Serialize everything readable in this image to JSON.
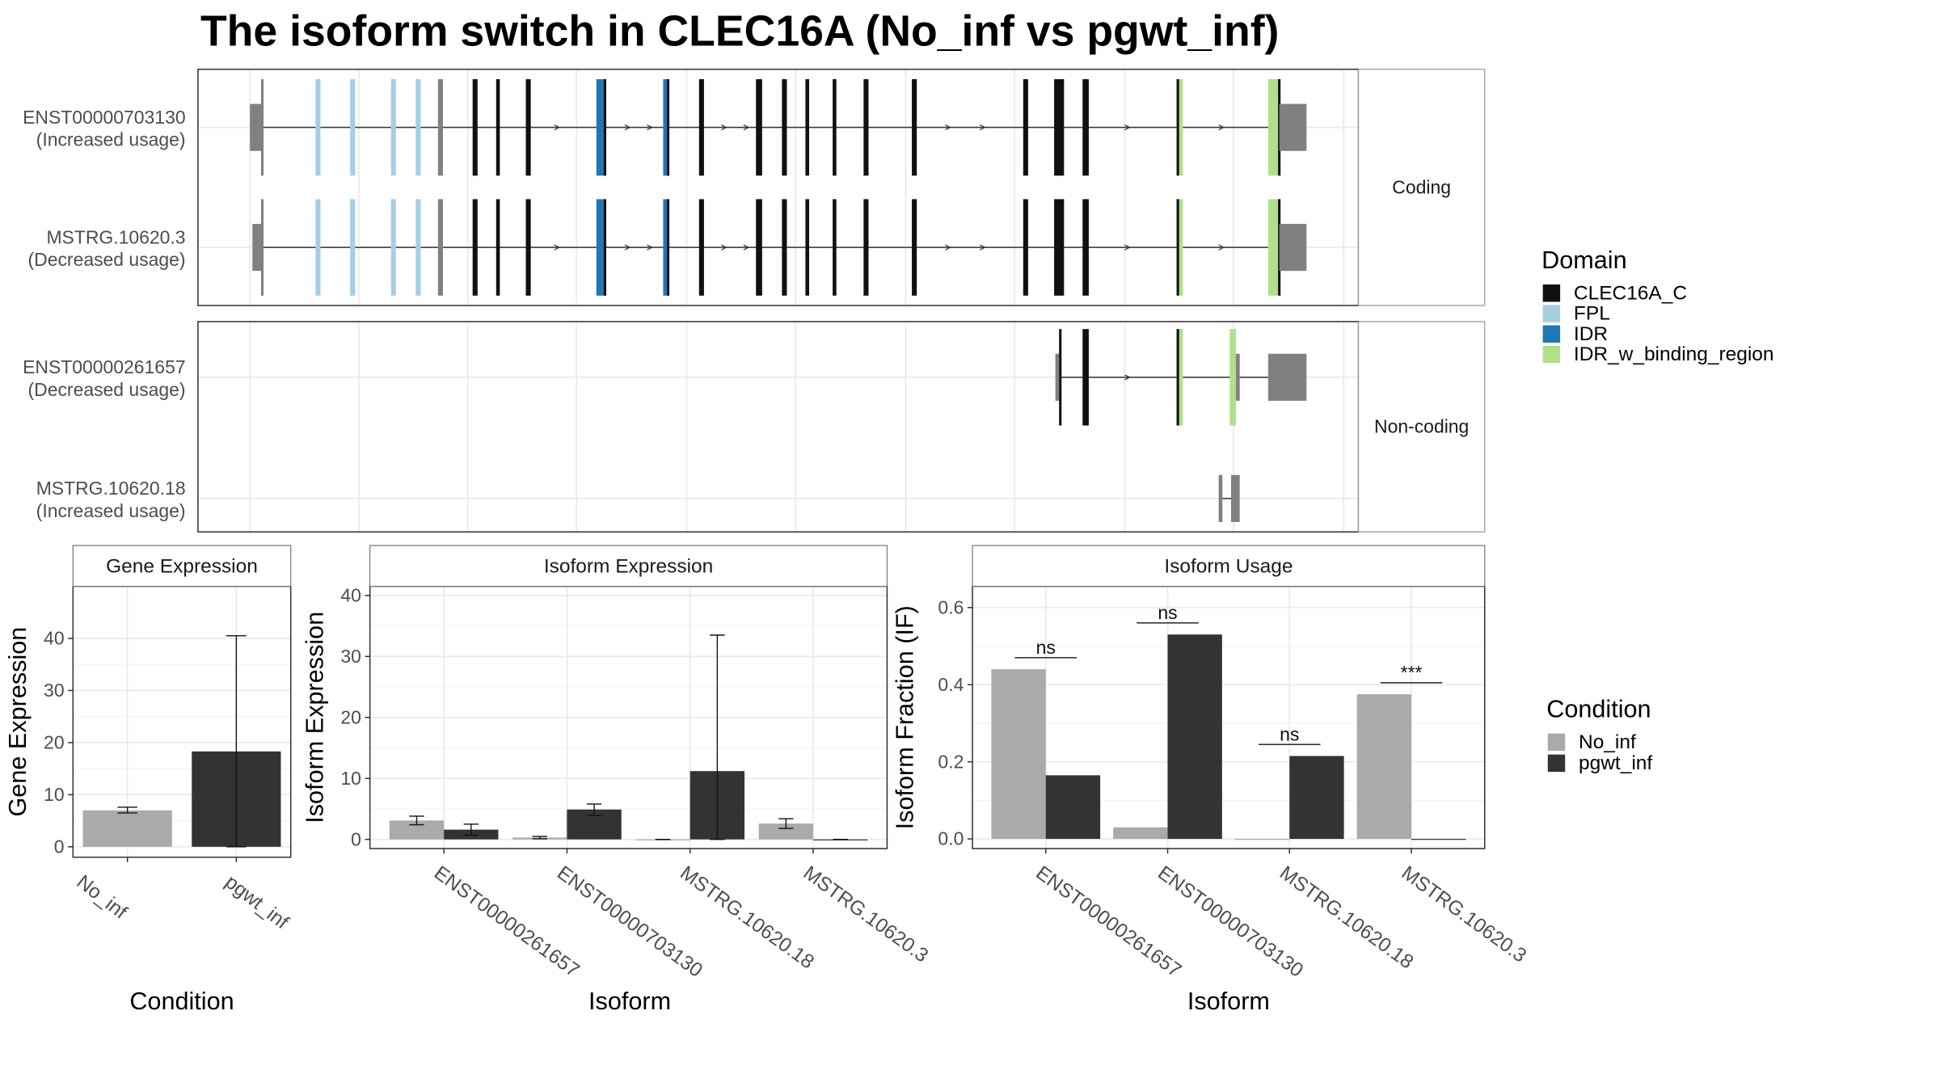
{
  "title": "The isoform switch in CLEC16A (No_inf vs pgwt_inf)",
  "colors": {
    "domain": {
      "CLEC16A_C": "#111111",
      "FPL": "#a6cee3",
      "IDR": "#1f78b4",
      "IDR_w_binding_region": "#b2df8a"
    },
    "utr": "#808080",
    "condition": {
      "No_inf": "#aaaaaa",
      "pgwt_inf": "#333333"
    }
  },
  "structure": {
    "facets": [
      "Coding",
      "Non-coding"
    ],
    "transcripts": [
      {
        "id": "ENST00000703130",
        "usage": "(Increased usage)",
        "facet": "Coding"
      },
      {
        "id": "MSTRG.10620.3",
        "usage": "(Decreased usage)",
        "facet": "Coding"
      },
      {
        "id": "ENST00000261657",
        "usage": "(Decreased usage)",
        "facet": "Non-coding"
      },
      {
        "id": "MSTRG.10620.18",
        "usage": "(Increased usage)",
        "facet": "Non-coding"
      }
    ]
  },
  "legend_domain": {
    "title": "Domain",
    "items": [
      "CLEC16A_C",
      "FPL",
      "IDR",
      "IDR_w_binding_region"
    ]
  },
  "legend_condition": {
    "title": "Condition",
    "items": [
      "No_inf",
      "pgwt_inf"
    ]
  },
  "chart_data": [
    {
      "type": "bar",
      "title": "Gene Expression",
      "xlabel": "Condition",
      "ylabel": "Gene Expression",
      "categories": [
        "No_inf",
        "pgwt_inf"
      ],
      "values": [
        7.0,
        18.3
      ],
      "error_low": [
        6.5,
        0.0
      ],
      "error_high": [
        7.6,
        40.5
      ],
      "ylim": [
        -2,
        50
      ],
      "yticks": [
        0,
        10,
        20,
        30,
        40
      ]
    },
    {
      "type": "bar",
      "title": "Isoform Expression",
      "xlabel": "Isoform",
      "ylabel": "Isoform Expression",
      "categories": [
        "ENST00000261657",
        "ENST00000703130",
        "MSTRG.10620.18",
        "MSTRG.10620.3"
      ],
      "series": [
        {
          "name": "No_inf",
          "values": [
            3.1,
            0.3,
            0.0,
            2.6
          ],
          "error_low": [
            2.4,
            0.1,
            0.0,
            1.8
          ],
          "error_high": [
            3.8,
            0.5,
            0.0,
            3.4
          ]
        },
        {
          "name": "pgwt_inf",
          "values": [
            1.6,
            4.9,
            11.2,
            0.0
          ],
          "error_low": [
            0.7,
            3.9,
            0.0,
            0.0
          ],
          "error_high": [
            2.5,
            5.8,
            33.5,
            0.0
          ]
        }
      ],
      "ylim": [
        -1.5,
        41.5
      ],
      "yticks": [
        0,
        10,
        20,
        30,
        40
      ]
    },
    {
      "type": "bar",
      "title": "Isoform Usage",
      "xlabel": "Isoform",
      "ylabel": "Isoform Fraction (IF)",
      "categories": [
        "ENST00000261657",
        "ENST00000703130",
        "MSTRG.10620.18",
        "MSTRG.10620.3"
      ],
      "series": [
        {
          "name": "No_inf",
          "values": [
            0.44,
            0.03,
            0.0,
            0.375
          ]
        },
        {
          "name": "pgwt_inf",
          "values": [
            0.165,
            0.53,
            0.215,
            0.0
          ]
        }
      ],
      "significance": [
        "ns",
        "ns",
        "ns",
        "***"
      ],
      "significance_y": [
        0.47,
        0.56,
        0.245,
        0.405
      ],
      "ylim": [
        -0.025,
        0.655
      ],
      "yticks": [
        0.0,
        0.2,
        0.4,
        0.6
      ],
      "ytick_labels": [
        "0.0",
        "0.2",
        "0.4",
        "0.6"
      ]
    }
  ]
}
